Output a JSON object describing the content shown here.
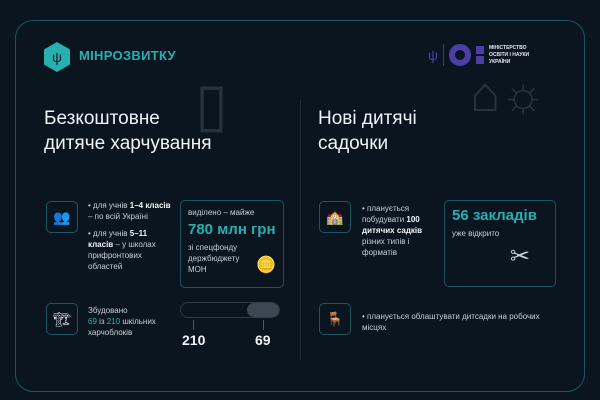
{
  "header": {
    "brand": "МІНРОЗВИТКУ",
    "partner": "МІНІСТЕРСТВО ОСВІТИ І НАУКИ УКРАЇНИ",
    "partner_lines": [
      "МІНІСТЕРСТВО",
      "ОСВІТИ І НАУКИ",
      "УКРАЇНИ"
    ]
  },
  "left": {
    "title_lines": [
      "Безкоштовне",
      "дитяче харчування"
    ],
    "bullet1": {
      "pre": "• для учнів ",
      "bold": "1–4 класів",
      "post": " – по всій Україні"
    },
    "bullet2": {
      "pre": "• для учнів ",
      "bold": "5–11 класів",
      "post": " – у школах прифронтових областей"
    },
    "funding": {
      "pre": "виділено – майже",
      "amount": "780 млн грн",
      "post": "зі спецфонду держбюджету МОН"
    },
    "built": {
      "pre": "Збудовано",
      "done": "69",
      "mid": " із ",
      "total": "210",
      "post": " шкільних харчоблоків"
    },
    "progress": {
      "total_label": "210",
      "done_label": "69",
      "fraction": 0.33
    }
  },
  "right": {
    "title_lines": [
      "Нові дитячі",
      "садочки"
    ],
    "bullet1": {
      "pre": "• планується побудувати ",
      "bold": "100 дитячих садків",
      "post": " різних типів і форматів"
    },
    "opened": {
      "amount": "56 закладів",
      "post": "уже відкрито"
    },
    "bullet2": "• планується облаштувати дитсадки на робочих місцях"
  },
  "colors": {
    "accent": "#27b0b0",
    "background": "#0a1520",
    "ministry": "#4a3fa8"
  }
}
